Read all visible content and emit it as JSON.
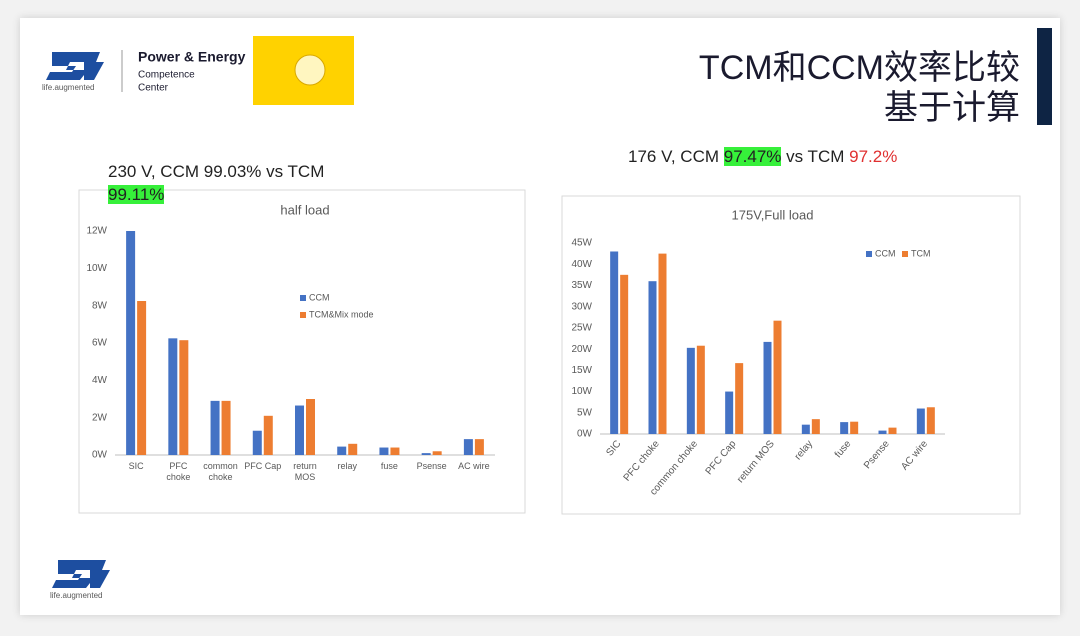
{
  "header": {
    "logo_tagline": "life.augmented",
    "center_name": [
      "Power & Energy",
      "Competence",
      "Center"
    ],
    "title": [
      "TCM和CCM效率比较",
      "基于计算"
    ]
  },
  "captions": [
    {
      "parts": [
        "230 V, CCM 99.03% vs TCM",
        "99.11%"
      ]
    },
    {
      "parts": [
        "176 V, CCM ",
        "97.47%",
        " vs TCM ",
        "97.2%"
      ]
    }
  ],
  "footer": {
    "logo_tagline": "life.augmented"
  },
  "chart_data": [
    {
      "type": "bar",
      "title": "half load",
      "categories": [
        "SIC",
        "PFC choke",
        "common choke",
        "PFC Cap",
        "return MOS",
        "relay",
        "fuse",
        "Psense",
        "AC wire"
      ],
      "series": [
        {
          "name": "CCM",
          "color": "#4472c4",
          "values": [
            12,
            6.25,
            2.9,
            1.3,
            2.65,
            0.45,
            0.4,
            0.1,
            0.85
          ]
        },
        {
          "name": "TCM&Mix mode",
          "color": "#ed7d31",
          "values": [
            8.25,
            6.15,
            2.9,
            2.1,
            3.0,
            0.6,
            0.4,
            0.2,
            0.85
          ]
        }
      ],
      "ylim": [
        0,
        12
      ],
      "yticks": [
        {
          "value": 0,
          "label": "0W"
        },
        {
          "value": 2,
          "label": "2W"
        },
        {
          "value": 4,
          "label": "4W"
        },
        {
          "value": 6,
          "label": "6W"
        },
        {
          "value": 8,
          "label": "8W"
        },
        {
          "value": 10,
          "label": "10W"
        },
        {
          "value": 12,
          "label": "12W"
        }
      ],
      "grid": false,
      "legend": "center"
    },
    {
      "type": "bar",
      "title": "175V,Full load",
      "categories": [
        "SIC",
        "PFC choke",
        "common choke",
        "PFC Cap",
        "return MOS",
        "relay",
        "fuse",
        "Psense",
        "AC wire"
      ],
      "series": [
        {
          "name": "CCM",
          "color": "#4472c4",
          "values": [
            43,
            36,
            20.3,
            10,
            21.7,
            2.2,
            2.8,
            0.8,
            6
          ]
        },
        {
          "name": "TCM",
          "color": "#ed7d31",
          "values": [
            37.5,
            42.5,
            20.8,
            16.7,
            26.7,
            3.5,
            2.9,
            1.5,
            6.3
          ]
        }
      ],
      "ylim": [
        0,
        45
      ],
      "yticks": [
        {
          "value": 0,
          "label": "0W"
        },
        {
          "value": 5,
          "label": "5W"
        },
        {
          "value": 10,
          "label": "10W"
        },
        {
          "value": 15,
          "label": "15W"
        },
        {
          "value": 20,
          "label": "20W"
        },
        {
          "value": 25,
          "label": "25W"
        },
        {
          "value": 30,
          "label": "30W"
        },
        {
          "value": 35,
          "label": "35W"
        },
        {
          "value": 40,
          "label": "40W"
        },
        {
          "value": 45,
          "label": "45W"
        }
      ],
      "grid": false,
      "legend": "top-right"
    }
  ]
}
